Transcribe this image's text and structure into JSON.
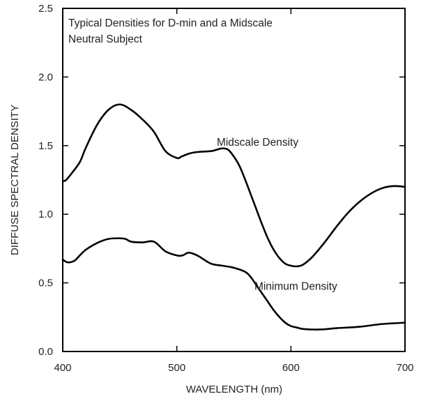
{
  "chart_data": {
    "type": "line",
    "title": "Typical Densities for D-min and a Midscale Neutral Subject",
    "annotation_lines": [
      "Typical Densities for D-min and a Midscale",
      "Neutral Subject"
    ],
    "xlabel": "WAVELENGTH (nm)",
    "ylabel": "DIFFUSE SPECTRAL DENSITY",
    "xlim": [
      400,
      700
    ],
    "ylim": [
      0.0,
      2.5
    ],
    "x_ticks": [
      400,
      500,
      600,
      700
    ],
    "y_ticks": [
      0.0,
      0.5,
      1.0,
      1.5,
      2.0,
      2.5
    ],
    "x_tick_labels": [
      "400",
      "500",
      "600",
      "700"
    ],
    "y_tick_labels": [
      "0.0",
      "0.5",
      "1.0",
      "1.5",
      "2.0",
      "2.5"
    ],
    "grid": false,
    "legend": "none",
    "colors": {
      "line": "#000000",
      "axes": "#000000",
      "text": "#222222"
    },
    "series": [
      {
        "name": "Midscale Density",
        "x": [
          400,
          403,
          408,
          415,
          420,
          430,
          440,
          450,
          460,
          470,
          480,
          490,
          500,
          504,
          510,
          515,
          520,
          530,
          535,
          540,
          545,
          550,
          555,
          560,
          565,
          570,
          575,
          580,
          585,
          590,
          595,
          600,
          605,
          610,
          615,
          620,
          630,
          640,
          650,
          660,
          670,
          680,
          690,
          700
        ],
        "y": [
          1.24,
          1.25,
          1.3,
          1.38,
          1.48,
          1.65,
          1.76,
          1.8,
          1.76,
          1.69,
          1.6,
          1.46,
          1.41,
          1.42,
          1.44,
          1.45,
          1.455,
          1.46,
          1.47,
          1.48,
          1.47,
          1.42,
          1.35,
          1.25,
          1.14,
          1.03,
          0.92,
          0.82,
          0.74,
          0.68,
          0.64,
          0.625,
          0.62,
          0.63,
          0.66,
          0.7,
          0.8,
          0.91,
          1.01,
          1.09,
          1.15,
          1.19,
          1.205,
          1.2
        ]
      },
      {
        "name": "Minimum Density",
        "x": [
          400,
          404,
          410,
          415,
          420,
          430,
          440,
          450,
          455,
          460,
          470,
          480,
          490,
          500,
          505,
          510,
          515,
          520,
          530,
          540,
          550,
          560,
          565,
          570,
          575,
          580,
          585,
          590,
          595,
          600,
          605,
          610,
          620,
          630,
          640,
          660,
          680,
          700
        ],
        "y": [
          0.67,
          0.65,
          0.66,
          0.7,
          0.74,
          0.79,
          0.82,
          0.825,
          0.82,
          0.8,
          0.795,
          0.8,
          0.73,
          0.7,
          0.7,
          0.72,
          0.71,
          0.69,
          0.64,
          0.625,
          0.61,
          0.58,
          0.54,
          0.48,
          0.42,
          0.36,
          0.3,
          0.25,
          0.21,
          0.185,
          0.175,
          0.165,
          0.16,
          0.162,
          0.17,
          0.18,
          0.2,
          0.21
        ]
      }
    ],
    "series_label_positions": [
      {
        "series": "Midscale Density",
        "x": 535,
        "y": 1.5
      },
      {
        "series": "Minimum Density",
        "x": 568,
        "y": 0.45
      }
    ]
  }
}
